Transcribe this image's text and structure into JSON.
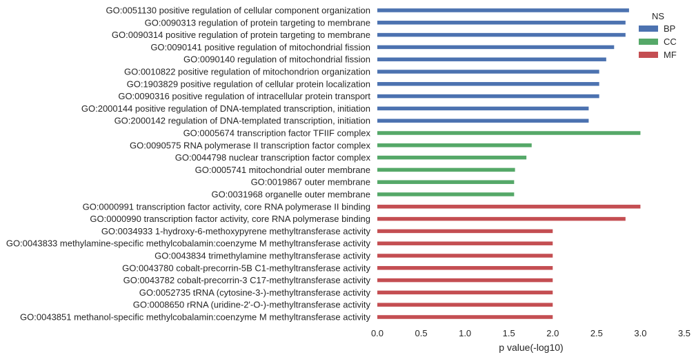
{
  "chart_data": {
    "type": "bar",
    "orientation": "horizontal",
    "xlabel": "p value(-log10)",
    "ylabel": "",
    "xlim": [
      0,
      3.5
    ],
    "xticks": [
      "0.0",
      "0.5",
      "1.0",
      "1.5",
      "2.0",
      "2.5",
      "3.0",
      "3.5"
    ],
    "grid": false,
    "legend": {
      "title": "NS",
      "placement": "top-right"
    },
    "series": [
      {
        "name": "BP",
        "color": "#4c72b0"
      },
      {
        "name": "CC",
        "color": "#55a868"
      },
      {
        "name": "MF",
        "color": "#c44e52"
      }
    ],
    "categories": [
      "GO:0051130 positive regulation of cellular component organization",
      "GO:0090313 regulation of protein targeting to membrane",
      "GO:0090314 positive regulation of protein targeting to membrane",
      "GO:0090141 positive regulation of mitochondrial fission",
      "GO:0090140 regulation of mitochondrial fission",
      "GO:0010822 positive regulation of mitochondrion organization",
      "GO:1903829 positive regulation of cellular protein localization",
      "GO:0090316 positive regulation of intracellular protein transport",
      "GO:2000144 positive regulation of DNA-templated transcription, initiation",
      "GO:2000142 regulation of DNA-templated transcription, initiation",
      "GO:0005674 transcription factor TFIIF complex",
      "GO:0090575 RNA polymerase II transcription factor complex",
      "GO:0044798 nuclear transcription factor complex",
      "GO:0005741 mitochondrial outer membrane",
      "GO:0019867 outer membrane",
      "GO:0031968 organelle outer membrane",
      "GO:0000991 transcription factor activity, core RNA polymerase II binding",
      "GO:0000990 transcription factor activity, core RNA polymerase binding",
      "GO:0034933 1-hydroxy-6-methoxypyrene methyltransferase activity",
      "GO:0043833 methylamine-specific methylcobalamin:coenzyme M methyltransferase activity",
      "GO:0043834 trimethylamine methyltransferase activity",
      "GO:0043780 cobalt-precorrin-5B C1-methyltransferase activity",
      "GO:0043782 cobalt-precorrin-3 C17-methyltransferase activity",
      "GO:0052735 tRNA (cytosine-3-)-methyltransferase activity",
      "GO:0008650 rRNA (uridine-2'-O-)-methyltransferase activity",
      "GO:0043851 methanol-specific methylcobalamin:coenzyme M methyltransferase activity"
    ],
    "values": [
      2.87,
      2.83,
      2.83,
      2.7,
      2.61,
      2.53,
      2.53,
      2.53,
      2.41,
      2.41,
      3.0,
      1.76,
      1.7,
      1.57,
      1.56,
      1.56,
      3.0,
      2.83,
      2.0,
      2.0,
      2.0,
      2.0,
      2.0,
      2.0,
      2.0,
      2.0
    ],
    "groups": [
      "BP",
      "BP",
      "BP",
      "BP",
      "BP",
      "BP",
      "BP",
      "BP",
      "BP",
      "BP",
      "CC",
      "CC",
      "CC",
      "CC",
      "CC",
      "CC",
      "MF",
      "MF",
      "MF",
      "MF",
      "MF",
      "MF",
      "MF",
      "MF",
      "MF",
      "MF"
    ]
  }
}
